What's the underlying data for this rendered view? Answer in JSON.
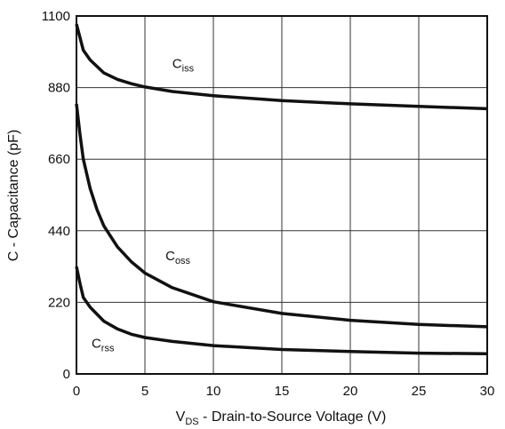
{
  "chart_data": {
    "type": "line",
    "xlabel": {
      "main": "V",
      "sub": "DS",
      "rest": " - Drain-to-Source Voltage (V)"
    },
    "ylabel": "C - Capacitance (pF)",
    "xlim": [
      0,
      30
    ],
    "ylim": [
      0,
      1100
    ],
    "x_ticks": [
      0,
      5,
      10,
      15,
      20,
      25,
      30
    ],
    "y_ticks": [
      0,
      220,
      440,
      660,
      880,
      1100
    ],
    "grid": true,
    "line_color": "#111111",
    "series": [
      {
        "name": "C",
        "sub": "iss",
        "label_at": [
          7,
          940
        ],
        "x": [
          0,
          0.5,
          1,
          2,
          3,
          4,
          5,
          7,
          10,
          15,
          20,
          25,
          30
        ],
        "y": [
          1075,
          995,
          965,
          925,
          905,
          892,
          882,
          868,
          855,
          840,
          830,
          822,
          815
        ]
      },
      {
        "name": "C",
        "sub": "oss",
        "label_at": [
          6.5,
          350
        ],
        "x": [
          0,
          0.25,
          0.5,
          1,
          1.5,
          2,
          3,
          4,
          5,
          7,
          10,
          15,
          20,
          25,
          30
        ],
        "y": [
          830,
          740,
          660,
          570,
          505,
          455,
          390,
          345,
          310,
          265,
          222,
          186,
          165,
          152,
          145
        ]
      },
      {
        "name": "C",
        "sub": "rss",
        "label_at": [
          1.1,
          80
        ],
        "x": [
          0,
          0.25,
          0.5,
          1,
          2,
          3,
          4,
          5,
          7,
          10,
          15,
          20,
          25,
          30
        ],
        "y": [
          330,
          280,
          235,
          205,
          162,
          138,
          122,
          112,
          100,
          87,
          75,
          69,
          64,
          62
        ]
      }
    ]
  }
}
